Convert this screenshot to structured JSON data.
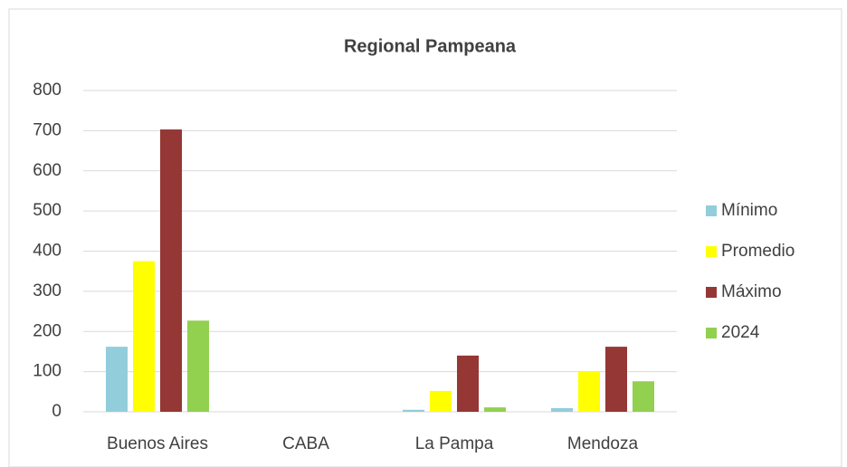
{
  "chart_data": {
    "type": "bar",
    "title": "Regional Pampeana",
    "categories": [
      "Buenos Aires",
      "CABA",
      "La Pampa",
      "Mendoza"
    ],
    "series": [
      {
        "name": "Mínimo",
        "color": "#92cddc",
        "values": [
          162,
          0,
          5,
          9
        ]
      },
      {
        "name": "Promedio",
        "color": "#ffff00",
        "values": [
          375,
          0,
          52,
          101
        ]
      },
      {
        "name": "Máximo",
        "color": "#953735",
        "values": [
          703,
          0,
          140,
          162
        ]
      },
      {
        "name": "2024",
        "color": "#92d050",
        "values": [
          227,
          0,
          11,
          76
        ]
      }
    ],
    "ylim": [
      0,
      800
    ],
    "yticks": [
      0,
      100,
      200,
      300,
      400,
      500,
      600,
      700,
      800
    ],
    "grid": true,
    "legend": "right"
  }
}
